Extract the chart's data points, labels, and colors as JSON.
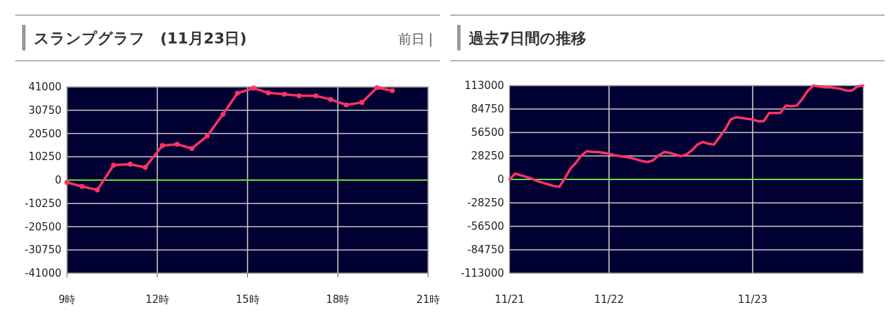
{
  "chart_data": [
    {
      "type": "line",
      "title": "スランプグラフ　(11月23日)",
      "annotations": [
        "前日 |"
      ],
      "x": [
        9.0,
        9.5,
        10.01,
        10.55,
        11.1,
        11.6,
        12.17,
        12.66,
        13.15,
        13.66,
        14.18,
        14.66,
        15.2,
        15.69,
        16.22,
        16.71,
        17.27,
        17.76,
        18.28,
        18.8,
        19.3,
        19.81
      ],
      "series": [
        {
          "color": "#ff3366",
          "values": [
            -1000,
            -2800,
            -4300,
            6600,
            7000,
            5600,
            15200,
            15800,
            13900,
            19400,
            28900,
            38200,
            40500,
            38400,
            37800,
            37100,
            37100,
            35500,
            33100,
            34200,
            40700,
            39400
          ]
        }
      ],
      "xlim": [
        9,
        21
      ],
      "xticks": [
        {
          "value": 9,
          "label": "9時"
        },
        {
          "value": 12,
          "label": "12時"
        },
        {
          "value": 15,
          "label": "15時"
        },
        {
          "value": 18,
          "label": "18時"
        },
        {
          "value": 21,
          "label": "21時"
        }
      ],
      "ylim": [
        -41000,
        41000
      ],
      "yticks": [
        41000,
        30750,
        20500,
        10250,
        0,
        -10250,
        -20500,
        -30750,
        -41000
      ],
      "ref_lines": [
        {
          "axis": "y",
          "value": 0,
          "color": "#66dd44"
        }
      ],
      "grid": true,
      "marker": "circle"
    },
    {
      "type": "line",
      "title": "過去7日間の推移",
      "categories": [
        "11/21",
        null,
        null,
        null,
        null,
        null,
        null,
        null,
        null,
        null,
        null,
        null,
        null,
        null,
        null,
        null,
        null,
        null,
        "11/22",
        null,
        null,
        null,
        null,
        null,
        null,
        null,
        null,
        null,
        null,
        null,
        null,
        null,
        null,
        null,
        null,
        null,
        null,
        null,
        null,
        null,
        null,
        null,
        null,
        null,
        "11/23",
        null,
        null,
        null,
        null,
        null,
        null,
        null,
        null,
        null,
        null,
        null,
        null,
        null,
        null,
        null,
        null,
        null,
        null,
        null,
        null
      ],
      "series": [
        {
          "color": "#ff3366",
          "values": [
            0,
            7000,
            5000,
            3000,
            1000,
            -2000,
            -4000,
            -6000,
            -8000,
            -9000,
            1000,
            13000,
            20000,
            29000,
            34000,
            33000,
            33000,
            32000,
            31000,
            29000,
            28000,
            27000,
            26000,
            24000,
            22000,
            21000,
            23000,
            29000,
            33000,
            32000,
            30000,
            28000,
            30000,
            35000,
            42000,
            45000,
            43000,
            42000,
            51000,
            60000,
            72000,
            75000,
            74000,
            73000,
            72000,
            70000,
            70000,
            80000,
            80000,
            80000,
            89000,
            88000,
            89000,
            97000,
            107000,
            113000,
            112000,
            111000,
            111000,
            110000,
            109000,
            107000,
            107000,
            112000,
            113000
          ]
        }
      ],
      "ylim": [
        -113000,
        113000
      ],
      "yticks": [
        113000,
        84750,
        56500,
        28250,
        0,
        -28250,
        -56500,
        -84750,
        -113000
      ],
      "ref_lines": [
        {
          "axis": "y",
          "value": 0,
          "color": "#66dd44"
        }
      ],
      "grid": true,
      "marker": "none"
    }
  ]
}
